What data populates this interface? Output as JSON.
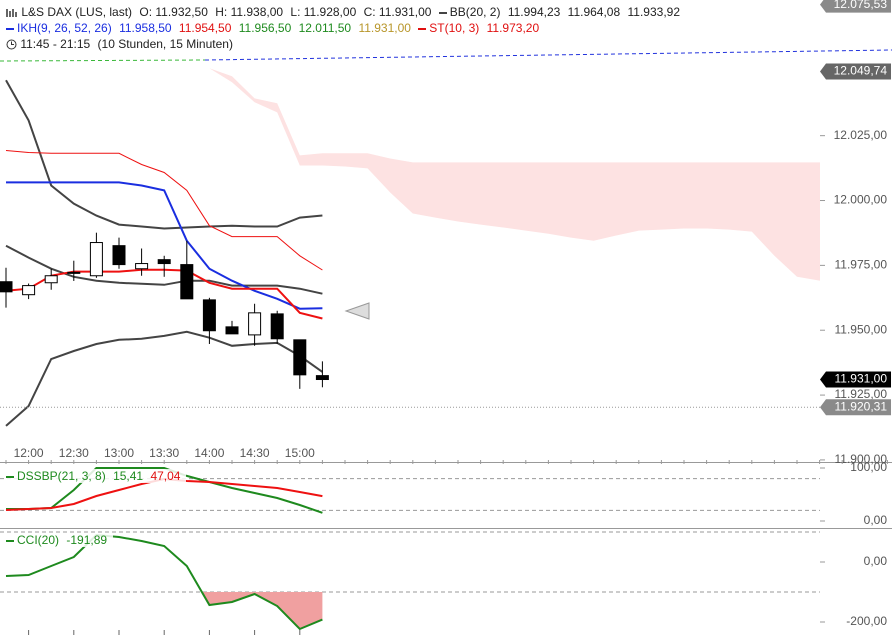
{
  "header": {
    "instrument": "L&S DAX (LUS, last)",
    "ohlc": [
      "O: 11.932,50",
      "H: 11.938,00",
      "L: 11.928,00",
      "C: 11.931,00"
    ],
    "bb": {
      "name": "BB(20, 2)",
      "values": [
        "11.994,23",
        "11.964,08",
        "11.933,92"
      ]
    },
    "ikh": {
      "name": "IKH(9, 26, 52, 26)",
      "values": [
        "11.958,50",
        "11.954,50",
        "11.956,50",
        "12.011,50",
        "11.931,00"
      ]
    },
    "st": {
      "name": "ST(10, 3)",
      "values": [
        "11.973,20"
      ]
    },
    "session": "11:45 - 21:15",
    "duration": "(10 Stunden, 15 Minuten)"
  },
  "chart_data": [
    {
      "type": "candlestick",
      "categories": [
        null,
        "12:00",
        null,
        "12:30",
        null,
        "13:00",
        null,
        "13:30",
        null,
        "14:00",
        null,
        "14:30",
        null,
        "15:00",
        null,
        null,
        null,
        null,
        null,
        null,
        null,
        null,
        null,
        null,
        null,
        null,
        null,
        null,
        null,
        null,
        null,
        null,
        null,
        null,
        null,
        null,
        null,
        null,
        null,
        null
      ],
      "open": [
        11968.7,
        11963.7,
        11968.3,
        11972.0,
        11971.0,
        11982.6,
        11973.7,
        11977.2,
        11975.3,
        11961.7,
        11951.3,
        11948.2,
        11956.3,
        11946.3,
        11932.5,
        null,
        null,
        null,
        null,
        null,
        null,
        null,
        null,
        null,
        null,
        null,
        null,
        null,
        null,
        null,
        null,
        null,
        null,
        null,
        null,
        null,
        null,
        null,
        null,
        null
      ],
      "high": [
        11974.1,
        11968.0,
        11973.7,
        11976.8,
        11987.6,
        11985.7,
        11981.5,
        11978.7,
        11984.5,
        11962.5,
        11953.6,
        11960.2,
        11957.5,
        11946.3,
        11938.0,
        null,
        null,
        null,
        null,
        null,
        null,
        null,
        null,
        null,
        null,
        null,
        null,
        null,
        null,
        null,
        null,
        null,
        null,
        null,
        null,
        null,
        null,
        null,
        null,
        null
      ],
      "low": [
        11958.7,
        11962.0,
        11965.6,
        11969.0,
        11970.2,
        11973.7,
        11971.0,
        11970.6,
        11962.1,
        11944.7,
        11948.6,
        11944.0,
        11944.7,
        11927.4,
        11928.0,
        null,
        null,
        null,
        null,
        null,
        null,
        null,
        null,
        null,
        null,
        null,
        null,
        null,
        null,
        null,
        null,
        null,
        null,
        null,
        null,
        null,
        null,
        null,
        null,
        null
      ],
      "close": [
        11964.8,
        11967.2,
        11971.0,
        11972.3,
        11983.8,
        11975.3,
        11975.7,
        11975.7,
        11962.1,
        11949.8,
        11948.6,
        11956.7,
        11946.7,
        11932.8,
        11931.0,
        null,
        null,
        null,
        null,
        null,
        null,
        null,
        null,
        null,
        null,
        null,
        null,
        null,
        null,
        null,
        null,
        null,
        null,
        null,
        null,
        null,
        null,
        null,
        null,
        null
      ],
      "up_color": "#ffffff",
      "down_color": "#000000",
      "cloud": {
        "color": "#fde2e2",
        "upper": [
          null,
          null,
          null,
          null,
          null,
          null,
          null,
          null,
          null,
          12051.0,
          12047.9,
          12039.4,
          12037.5,
          12017.4,
          12018.2,
          12018.2,
          12018.2,
          12016.2,
          12014.7,
          12014.7,
          12014.7,
          12014.7,
          12014.7,
          12014.7,
          12014.7,
          12014.7,
          12014.7,
          12014.7,
          12014.7,
          12014.7,
          12014.7,
          12014.7,
          12014.7,
          12014.7,
          12014.7,
          12014.7,
          12014.7,
          12013.9,
          12012.8,
          12011.5
        ],
        "lower": [
          null,
          null,
          null,
          null,
          null,
          null,
          null,
          null,
          null,
          12051.0,
          12045.6,
          12037.9,
          12034.0,
          12013.5,
          12013.5,
          12013.1,
          12012.4,
          12003.1,
          11995.0,
          11993.4,
          11991.9,
          11990.7,
          11989.6,
          11988.4,
          11987.2,
          11985.7,
          11984.5,
          11986.5,
          11988.4,
          11988.8,
          11989.2,
          11989.2,
          11988.8,
          11988.0,
          11978.7,
          11970.6,
          11969.1,
          11967.9,
          11965.2,
          11961.4
        ]
      },
      "series": [
        {
          "color": "#444444",
          "width": 2,
          "values": [
            12046.4,
            12030.9,
            12005.8,
            11998.8,
            11994.2,
            11990.7,
            11990.0,
            11989.2,
            11989.6,
            11990.0,
            11990.3,
            11990.0,
            11990.0,
            11993.4,
            11994.23,
            null,
            null,
            null,
            null,
            null,
            null,
            null,
            null,
            null,
            null,
            null,
            null,
            null,
            null,
            null,
            null,
            null,
            null,
            null,
            null,
            null,
            null,
            null,
            null,
            null
          ]
        },
        {
          "color": "#444444",
          "width": 2,
          "values": [
            11982.6,
            11978.0,
            11973.7,
            11970.6,
            11969.1,
            11968.3,
            11967.9,
            11967.5,
            11969.1,
            11969.1,
            11967.2,
            11967.2,
            11967.2,
            11966.0,
            11964.08,
            null,
            null,
            null,
            null,
            null,
            null,
            null,
            null,
            null,
            null,
            null,
            null,
            null,
            null,
            null,
            null,
            null,
            null,
            null,
            null,
            null,
            null,
            null,
            null,
            null
          ]
        },
        {
          "color": "#444444",
          "width": 2,
          "values": [
            11913.1,
            11920.8,
            11938.9,
            11942.0,
            11944.7,
            11946.3,
            11946.7,
            11947.8,
            11949.4,
            11947.1,
            11944.0,
            11944.7,
            11945.1,
            11940.1,
            11933.92,
            null,
            null,
            null,
            null,
            null,
            null,
            null,
            null,
            null,
            null,
            null,
            null,
            null,
            null,
            null,
            null,
            null,
            null,
            null,
            null,
            null,
            null,
            null,
            null,
            null
          ]
        },
        {
          "color": "#ee1111",
          "width": 1,
          "values": [
            12019.3,
            12018.5,
            12018.2,
            12018.2,
            12018.2,
            12018.2,
            12013.9,
            12010.8,
            12003.9,
            11990.3,
            11986.1,
            11986.1,
            11986.1,
            11978.7,
            11973.2,
            null,
            null,
            null,
            null,
            null,
            null,
            null,
            null,
            null,
            null,
            null,
            null,
            null,
            null,
            null,
            null,
            null,
            null,
            null,
            null,
            null,
            null,
            null,
            null,
            null
          ]
        },
        {
          "color": "#1a2ee0",
          "width": 2,
          "values": [
            12007.0,
            12007.0,
            12007.0,
            12007.0,
            12007.0,
            12007.0,
            12005.8,
            12003.9,
            11984.5,
            11973.7,
            11969.1,
            11965.2,
            11962.1,
            11958.3,
            11958.5,
            null,
            null,
            null,
            null,
            null,
            null,
            null,
            null,
            null,
            null,
            null,
            null,
            null,
            null,
            null,
            null,
            null,
            null,
            null,
            null,
            null,
            null,
            null,
            null,
            null
          ]
        },
        {
          "color": "#ee1111",
          "width": 2,
          "values": [
            11965.2,
            11966.0,
            11971.0,
            11972.6,
            11972.6,
            11972.6,
            11973.3,
            11973.3,
            11973.0,
            11968.3,
            11966.0,
            11966.0,
            11966.0,
            11956.7,
            11954.5,
            null,
            null,
            null,
            null,
            null,
            null,
            null,
            null,
            null,
            null,
            null,
            null,
            null,
            null,
            null,
            null,
            null,
            null,
            null,
            null,
            null,
            null,
            null,
            null,
            null
          ]
        }
      ],
      "ylim": [
        11899.2,
        12077.3
      ],
      "yticks": [
        {
          "value": 11900,
          "label": "11.900,00"
        },
        {
          "value": 11925,
          "label": "11.925,00"
        },
        {
          "value": 11950,
          "label": "11.950,00"
        },
        {
          "value": 11975,
          "label": "11.975,00"
        },
        {
          "value": 12000,
          "label": "12.000,00"
        },
        {
          "value": 12025,
          "label": "12.025,00"
        }
      ],
      "price_flags": [
        {
          "value": 12075.53,
          "label": "12.075,53",
          "color": "#8a8a8a"
        },
        {
          "value": 12049.74,
          "label": "12.049,74",
          "color": "#666666"
        },
        {
          "value": 11931.0,
          "label": "11.931,00",
          "color": "#000000"
        },
        {
          "value": 11920.31,
          "label": "11.920,31",
          "color": "#8a8a8a",
          "dotted": true
        }
      ]
    },
    {
      "type": "line",
      "title": "DSSBP(21, 3, 8)",
      "series": [
        {
          "color": "#1e8a1e",
          "last_label": "15,41",
          "values": [
            22.6,
            22.6,
            24.5,
            58.5,
            100,
            100,
            100,
            100,
            85,
            73.6,
            62.3,
            52.8,
            43.4,
            30.2,
            15.41
          ]
        },
        {
          "color": "#ee1111",
          "last_label": "47,04",
          "values": [
            20.8,
            22.6,
            24.5,
            32.1,
            47.2,
            58.5,
            69.8,
            79.2,
            75.5,
            73.6,
            69.8,
            66.0,
            62.3,
            54.7,
            47.04
          ]
        }
      ],
      "levels": [
        80,
        20
      ],
      "ylim": [
        -13.2,
        111.3
      ],
      "yticks": [
        {
          "value": 0,
          "label": "0,00"
        },
        {
          "value": 100,
          "label": "100,00"
        }
      ]
    },
    {
      "type": "line",
      "title": "CCI(20)",
      "series": [
        {
          "color": "#1e8a1e",
          "last_label": "-191,89",
          "values": [
            -46.7,
            -43.3,
            -13.3,
            16.7,
            90,
            83.3,
            70,
            53.3,
            -13.3,
            -143.3,
            -133.3,
            -106.7,
            -146.7,
            -223.3,
            -191.89
          ]
        }
      ],
      "levels": [
        100,
        -100
      ],
      "fill_below": -100,
      "fill_color": "#f0a0a0",
      "ylim": [
        -243.3,
        113.3
      ],
      "yticks": [
        {
          "value": 0,
          "label": "0,00"
        },
        {
          "value": -200,
          "label": "-200,00"
        }
      ]
    }
  ]
}
